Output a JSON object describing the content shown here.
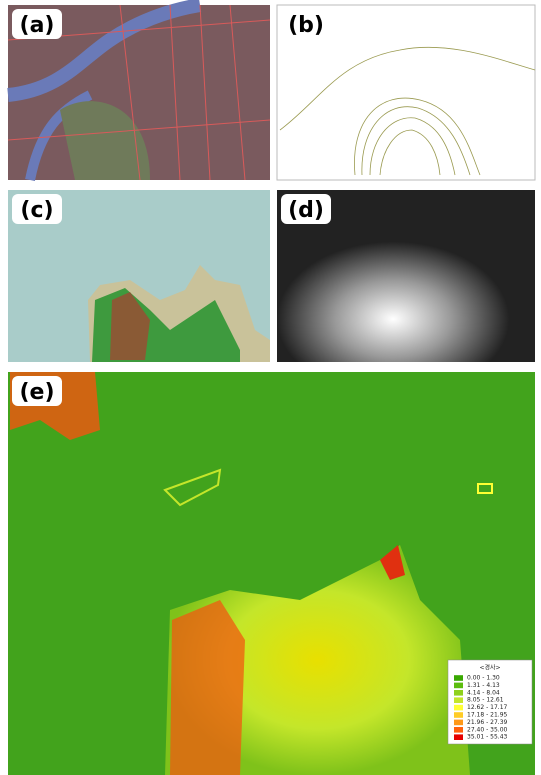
{
  "panels": [
    {
      "label": "(a)"
    },
    {
      "label": "(b)"
    },
    {
      "label": "(c)"
    },
    {
      "label": "(d)"
    },
    {
      "label": "(e)"
    }
  ],
  "legend": {
    "title": "<경사>",
    "items": [
      {
        "label": "0.00 - 1.30",
        "color": "#38a800"
      },
      {
        "label": "1.31 - 4.13",
        "color": "#5cbd0f"
      },
      {
        "label": "4.14 - 8.04",
        "color": "#8fd11c"
      },
      {
        "label": "8.05 - 12.61",
        "color": "#c4e62a"
      },
      {
        "label": "12.62 - 17.17",
        "color": "#ffff33"
      },
      {
        "label": "17.18 - 21.95",
        "color": "#ffcc26"
      },
      {
        "label": "21.96 - 27.39",
        "color": "#ff9919"
      },
      {
        "label": "27.40 - 35.00",
        "color": "#ff620d"
      },
      {
        "label": "35.01 - 55.43",
        "color": "#e60000"
      }
    ]
  }
}
